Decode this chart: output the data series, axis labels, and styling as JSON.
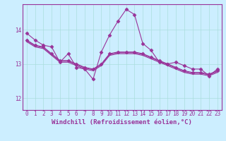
{
  "background_color": "#cceeff",
  "line_color": "#993399",
  "marker_style": "D",
  "marker_size": 2.5,
  "line_width": 0.8,
  "xlabel": "Windchill (Refroidissement éolien,°C)",
  "xlabel_fontsize": 6.5,
  "tick_color": "#993399",
  "tick_fontsize": 5.5,
  "grid_color": "#aadddd",
  "xlim": [
    -0.5,
    23.5
  ],
  "ylim": [
    11.65,
    14.75
  ],
  "yticks": [
    12,
    13,
    14
  ],
  "xticks": [
    0,
    1,
    2,
    3,
    4,
    5,
    6,
    7,
    8,
    9,
    10,
    11,
    12,
    13,
    14,
    15,
    16,
    17,
    18,
    19,
    20,
    21,
    22,
    23
  ],
  "series": [
    [
      13.9,
      13.7,
      13.55,
      13.5,
      13.05,
      13.3,
      12.9,
      12.85,
      12.55,
      13.35,
      13.85,
      14.25,
      14.6,
      14.45,
      13.6,
      13.4,
      13.05,
      13.0,
      13.05,
      12.95,
      12.85,
      12.85,
      12.65,
      12.85
    ],
    [
      13.7,
      13.55,
      13.5,
      13.3,
      13.1,
      13.1,
      13.0,
      12.9,
      12.85,
      13.0,
      13.3,
      13.35,
      13.35,
      13.35,
      13.3,
      13.2,
      13.1,
      13.0,
      12.9,
      12.8,
      12.75,
      12.75,
      12.7,
      12.8
    ],
    [
      13.68,
      13.53,
      13.48,
      13.28,
      13.08,
      13.08,
      12.98,
      12.88,
      12.83,
      12.98,
      13.28,
      13.33,
      13.33,
      13.33,
      13.28,
      13.18,
      13.08,
      12.98,
      12.88,
      12.78,
      12.73,
      12.73,
      12.68,
      12.78
    ],
    [
      13.65,
      13.5,
      13.45,
      13.25,
      13.05,
      13.05,
      12.95,
      12.85,
      12.8,
      12.95,
      13.25,
      13.3,
      13.3,
      13.3,
      13.25,
      13.15,
      13.05,
      12.95,
      12.85,
      12.75,
      12.7,
      12.7,
      12.65,
      12.75
    ]
  ],
  "show_markers": [
    true,
    true,
    false,
    false
  ]
}
